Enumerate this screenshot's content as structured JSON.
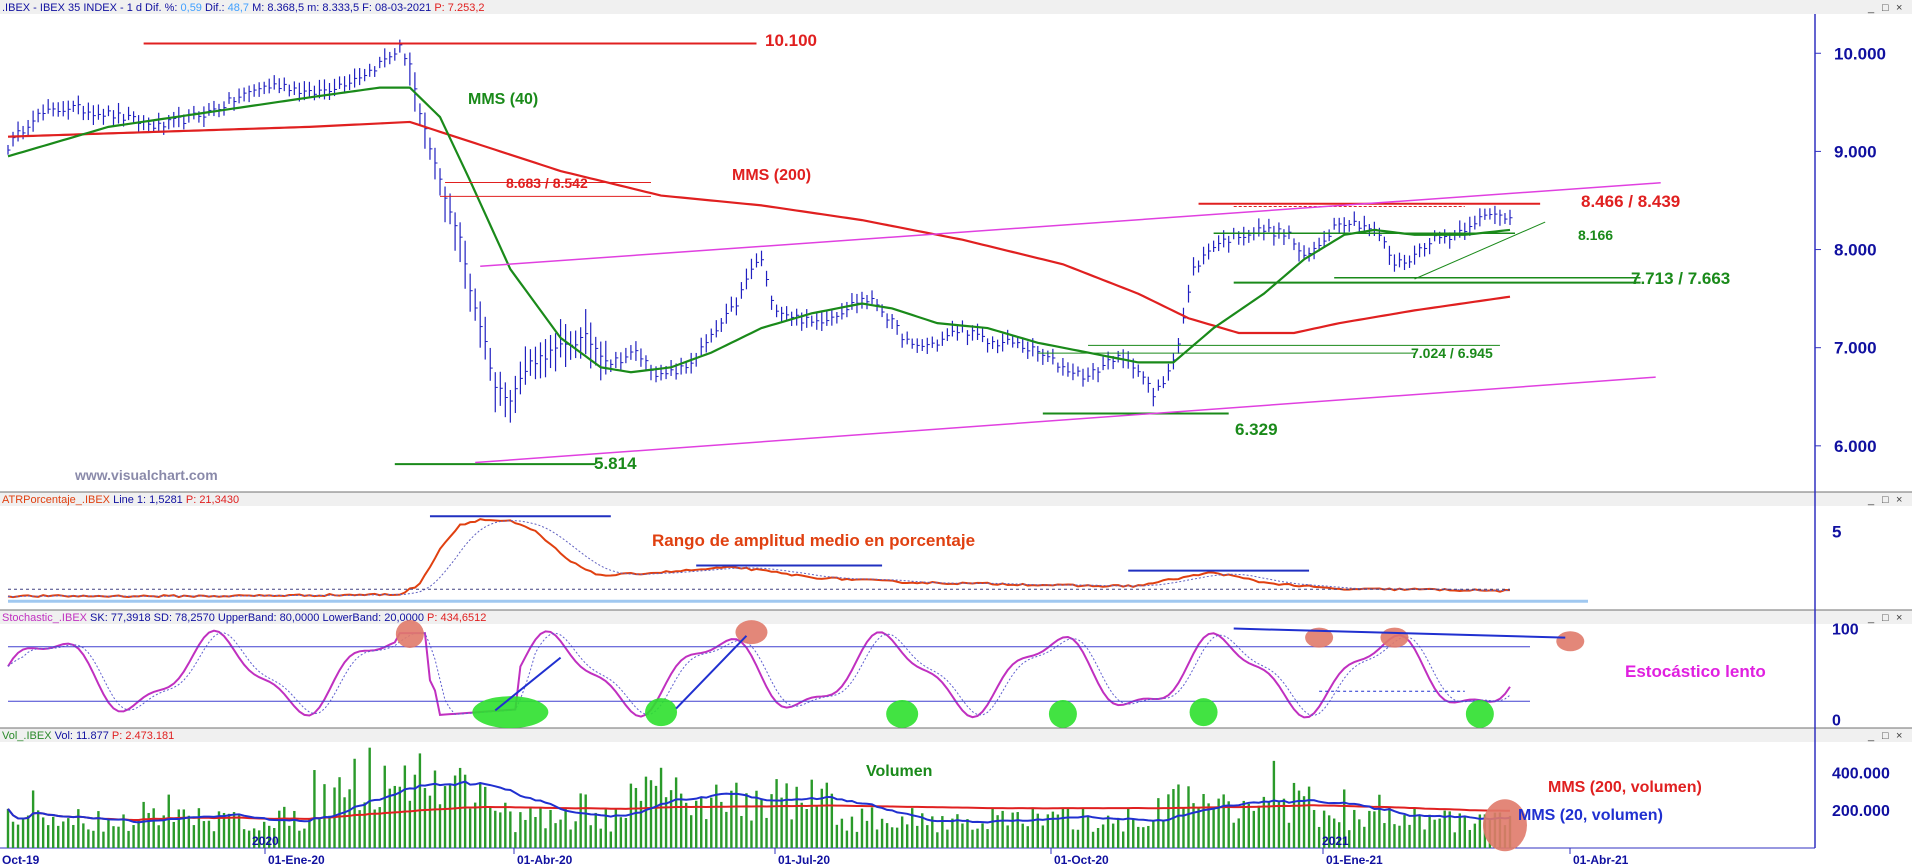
{
  "colors": {
    "price": "#2020c0",
    "mms40": "#1a8a1a",
    "mms200": "#e02020",
    "channel": "#e040e0",
    "atr": "#e04010",
    "atr_signal": "#6060c0",
    "stoch_k": "#c030c0",
    "stoch_d": "#6060d0",
    "stoch_band": "#4040d0",
    "volume": "#2a9a2a",
    "vol_ma20": "#2030d0",
    "vol_ma200": "#e02020",
    "axis_text": "#1010a0",
    "header_bg": "#f0f0f0"
  },
  "headers": {
    "main": ".IBEX - IBEX 35 INDEX - 1 d",
    "main_dif_pct_label": " Dif. %: ",
    "main_dif_pct": "0,59",
    "main_dif_label": " Dif.: ",
    "main_dif": "48,7",
    "main_m1": " M: 8.368,5",
    "main_m2": " m: 8.333,5",
    "main_f": " F: 08-03-2021",
    "main_p": " P: 7.253,2",
    "atr": "ATRPorcentaje_.IBEX",
    "atr_vals": " Line 1: 1,5281",
    "atr_p": " P: 21,3430",
    "stoch": "Stochastic_.IBEX",
    "stoch_vals": " SK: 77,3918  SD: 78,2570  UpperBand: 80,0000  LowerBand: 20,0000",
    "stoch_p": " P: 434,6512",
    "vol": "Vol_.IBEX",
    "vol_vals": " Vol: 11.877",
    "vol_p": " P: 2.473.181"
  },
  "window_controls": [
    "_",
    "□",
    "×"
  ],
  "watermark": "www.visualchart.com",
  "chart_data": [
    {
      "type": "line",
      "name": "price",
      "x_ticks": [
        "Oct-19",
        "01-Ene-20",
        "01-Abr-20",
        "01-Jul-20",
        "01-Oct-20",
        "01-Ene-21",
        "01-Abr-21"
      ],
      "year_marks": [
        "2020",
        "2021"
      ],
      "y_ticks": [
        "10.000",
        "9.000",
        "8.000",
        "7.000",
        "6.000"
      ],
      "y_tick_values": [
        10000,
        9000,
        8000,
        7000,
        6000
      ],
      "ylim": [
        5550,
        10400
      ],
      "price_anchors": [
        [
          0,
          9050
        ],
        [
          5,
          9350
        ],
        [
          12,
          9450
        ],
        [
          20,
          9380
        ],
        [
          30,
          9250
        ],
        [
          40,
          9400
        ],
        [
          50,
          9650
        ],
        [
          55,
          9680
        ],
        [
          60,
          9580
        ],
        [
          66,
          9680
        ],
        [
          72,
          9820
        ],
        [
          78,
          10050
        ],
        [
          80,
          9900
        ],
        [
          82,
          9350
        ],
        [
          86,
          8700
        ],
        [
          90,
          8100
        ],
        [
          92,
          7600
        ],
        [
          95,
          7050
        ],
        [
          97,
          6600
        ],
        [
          100,
          6500
        ],
        [
          104,
          6850
        ],
        [
          110,
          7000
        ],
        [
          115,
          7100
        ],
        [
          120,
          6850
        ],
        [
          125,
          6950
        ],
        [
          130,
          6700
        ],
        [
          135,
          6800
        ],
        [
          140,
          7100
        ],
        [
          145,
          7450
        ],
        [
          148,
          7800
        ],
        [
          150,
          7900
        ],
        [
          152,
          7450
        ],
        [
          155,
          7350
        ],
        [
          160,
          7250
        ],
        [
          165,
          7350
        ],
        [
          170,
          7500
        ],
        [
          173,
          7450
        ],
        [
          176,
          7250
        ],
        [
          180,
          7000
        ],
        [
          185,
          7050
        ],
        [
          190,
          7200
        ],
        [
          195,
          7050
        ],
        [
          200,
          7050
        ],
        [
          205,
          6950
        ],
        [
          210,
          6800
        ],
        [
          215,
          6700
        ],
        [
          220,
          6900
        ],
        [
          225,
          6800
        ],
        [
          228,
          6500
        ],
        [
          230,
          6650
        ],
        [
          233,
          7050
        ],
        [
          236,
          7800
        ],
        [
          240,
          8050
        ],
        [
          245,
          8150
        ],
        [
          250,
          8200
        ],
        [
          255,
          8150
        ],
        [
          258,
          7900
        ],
        [
          261,
          8050
        ],
        [
          265,
          8300
        ],
        [
          270,
          8250
        ],
        [
          273,
          8150
        ],
        [
          276,
          7850
        ],
        [
          279,
          7900
        ],
        [
          283,
          8100
        ],
        [
          288,
          8150
        ],
        [
          292,
          8300
        ],
        [
          296,
          8350
        ],
        [
          299,
          8330
        ]
      ],
      "mms40": [
        [
          0,
          8950
        ],
        [
          20,
          9250
        ],
        [
          40,
          9400
        ],
        [
          60,
          9550
        ],
        [
          74,
          9650
        ],
        [
          80,
          9650
        ],
        [
          86,
          9350
        ],
        [
          92,
          8700
        ],
        [
          100,
          7800
        ],
        [
          110,
          7100
        ],
        [
          118,
          6800
        ],
        [
          124,
          6750
        ],
        [
          132,
          6800
        ],
        [
          140,
          6950
        ],
        [
          150,
          7200
        ],
        [
          160,
          7350
        ],
        [
          170,
          7450
        ],
        [
          176,
          7400
        ],
        [
          185,
          7250
        ],
        [
          195,
          7200
        ],
        [
          205,
          7050
        ],
        [
          215,
          6950
        ],
        [
          225,
          6850
        ],
        [
          232,
          6850
        ],
        [
          240,
          7200
        ],
        [
          250,
          7550
        ],
        [
          258,
          7900
        ],
        [
          266,
          8150
        ],
        [
          272,
          8200
        ],
        [
          280,
          8150
        ],
        [
          290,
          8150
        ],
        [
          299,
          8200
        ]
      ],
      "mms200": [
        [
          0,
          9150
        ],
        [
          30,
          9200
        ],
        [
          60,
          9250
        ],
        [
          80,
          9300
        ],
        [
          95,
          9050
        ],
        [
          110,
          8800
        ],
        [
          130,
          8550
        ],
        [
          150,
          8450
        ],
        [
          170,
          8300
        ],
        [
          190,
          8100
        ],
        [
          210,
          7850
        ],
        [
          225,
          7550
        ],
        [
          235,
          7300
        ],
        [
          245,
          7150
        ],
        [
          256,
          7150
        ],
        [
          265,
          7250
        ],
        [
          280,
          7380
        ],
        [
          299,
          7520
        ]
      ],
      "annotations": [
        "10.100",
        "MMS (40)",
        "MMS (200)",
        "8.683 / 8.542",
        "8.466 / 8.439",
        "8.166",
        "7.713 / 7.663",
        "7.024 / 6.945",
        "6.329",
        "5.814"
      ]
    },
    {
      "type": "line",
      "name": "atr",
      "y_ticks": [
        "5"
      ],
      "ylim": [
        0.5,
        6.5
      ],
      "line_anchors": [
        [
          0,
          1.2
        ],
        [
          40,
          1.2
        ],
        [
          78,
          1.3
        ],
        [
          82,
          1.9
        ],
        [
          86,
          4.0
        ],
        [
          90,
          5.4
        ],
        [
          94,
          5.7
        ],
        [
          100,
          5.6
        ],
        [
          105,
          5.0
        ],
        [
          112,
          3.2
        ],
        [
          118,
          2.4
        ],
        [
          130,
          2.6
        ],
        [
          145,
          2.9
        ],
        [
          160,
          2.3
        ],
        [
          180,
          2.0
        ],
        [
          200,
          1.9
        ],
        [
          215,
          1.8
        ],
        [
          225,
          1.8
        ],
        [
          232,
          2.2
        ],
        [
          240,
          2.6
        ],
        [
          250,
          2.0
        ],
        [
          265,
          1.6
        ],
        [
          280,
          1.6
        ],
        [
          299,
          1.5
        ]
      ],
      "annotations": [
        "Rango de amplitud medio en porcentaje"
      ]
    },
    {
      "type": "line",
      "name": "stochastic",
      "y_ticks": [
        "100",
        "0"
      ],
      "ylim": [
        -5,
        105
      ],
      "bands": [
        80,
        20
      ],
      "annotations": [
        "Estocástico lento"
      ]
    },
    {
      "type": "bar",
      "name": "volume",
      "y_ticks": [
        "400.000",
        "200.000"
      ],
      "ylim": [
        0,
        560000
      ],
      "annotations": [
        "Volumen",
        "MMS (200, volumen)",
        "MMS (20, volumen)"
      ]
    }
  ]
}
